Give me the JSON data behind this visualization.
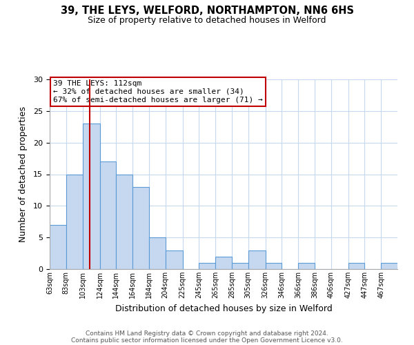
{
  "title": "39, THE LEYS, WELFORD, NORTHAMPTON, NN6 6HS",
  "subtitle": "Size of property relative to detached houses in Welford",
  "xlabel": "Distribution of detached houses by size in Welford",
  "ylabel": "Number of detached properties",
  "footer_lines": [
    "Contains HM Land Registry data © Crown copyright and database right 2024.",
    "Contains public sector information licensed under the Open Government Licence v3.0."
  ],
  "bin_labels": [
    "63sqm",
    "83sqm",
    "103sqm",
    "124sqm",
    "144sqm",
    "164sqm",
    "184sqm",
    "204sqm",
    "225sqm",
    "245sqm",
    "265sqm",
    "285sqm",
    "305sqm",
    "326sqm",
    "346sqm",
    "366sqm",
    "386sqm",
    "406sqm",
    "427sqm",
    "447sqm",
    "467sqm"
  ],
  "bin_edges": [
    63,
    83,
    103,
    124,
    144,
    164,
    184,
    204,
    225,
    245,
    265,
    285,
    305,
    326,
    346,
    366,
    386,
    406,
    427,
    447,
    467,
    487
  ],
  "bar_heights": [
    7,
    15,
    23,
    17,
    15,
    13,
    5,
    3,
    0,
    1,
    2,
    1,
    3,
    1,
    0,
    1,
    0,
    0,
    1,
    0,
    1
  ],
  "bar_color": "#c5d8f0",
  "bar_edge_color": "#5b9bd5",
  "property_size": 112,
  "vline_color": "#c00000",
  "vline_x": 112,
  "annotation_text": "39 THE LEYS: 112sqm\n← 32% of detached houses are smaller (34)\n67% of semi-detached houses are larger (71) →",
  "annotation_box_color": "#ffffff",
  "annotation_box_edge_color": "#c00000",
  "ylim": [
    0,
    30
  ],
  "yticks": [
    0,
    5,
    10,
    15,
    20,
    25,
    30
  ],
  "background_color": "#ffffff",
  "grid_color": "#c5d8f0"
}
